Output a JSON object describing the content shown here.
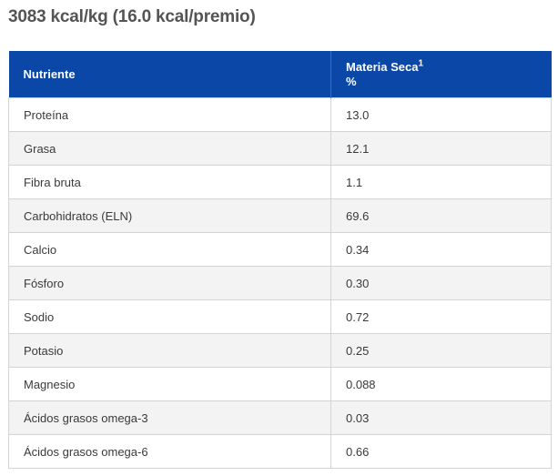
{
  "energy_title": "3083 kcal/kg (16.0 kcal/premio)",
  "table": {
    "header": {
      "nutrient": "Nutriente",
      "dry_matter": "Materia Seca",
      "dry_matter_footnote": "1",
      "dry_matter_unit": "%"
    },
    "rows": [
      {
        "name": "Proteína",
        "value": "13.0"
      },
      {
        "name": "Grasa",
        "value": "12.1"
      },
      {
        "name": "Fibra bruta",
        "value": "1.1"
      },
      {
        "name": "Carbohidratos (ELN)",
        "value": "69.6"
      },
      {
        "name": "Calcio",
        "value": "0.34"
      },
      {
        "name": "Fósforo",
        "value": "0.30"
      },
      {
        "name": "Sodio",
        "value": "0.72"
      },
      {
        "name": "Potasio",
        "value": "0.25"
      },
      {
        "name": "Magnesio",
        "value": "0.088"
      },
      {
        "name": "Ácidos grasos omega-3",
        "value": "0.03"
      },
      {
        "name": "Ácidos grasos omega-6",
        "value": "0.66"
      }
    ]
  },
  "colors": {
    "header_bg": "#0a47a6",
    "header_text": "#ffffff",
    "row_alt_bg": "#f3f3f3",
    "border": "#d4d4d4"
  }
}
